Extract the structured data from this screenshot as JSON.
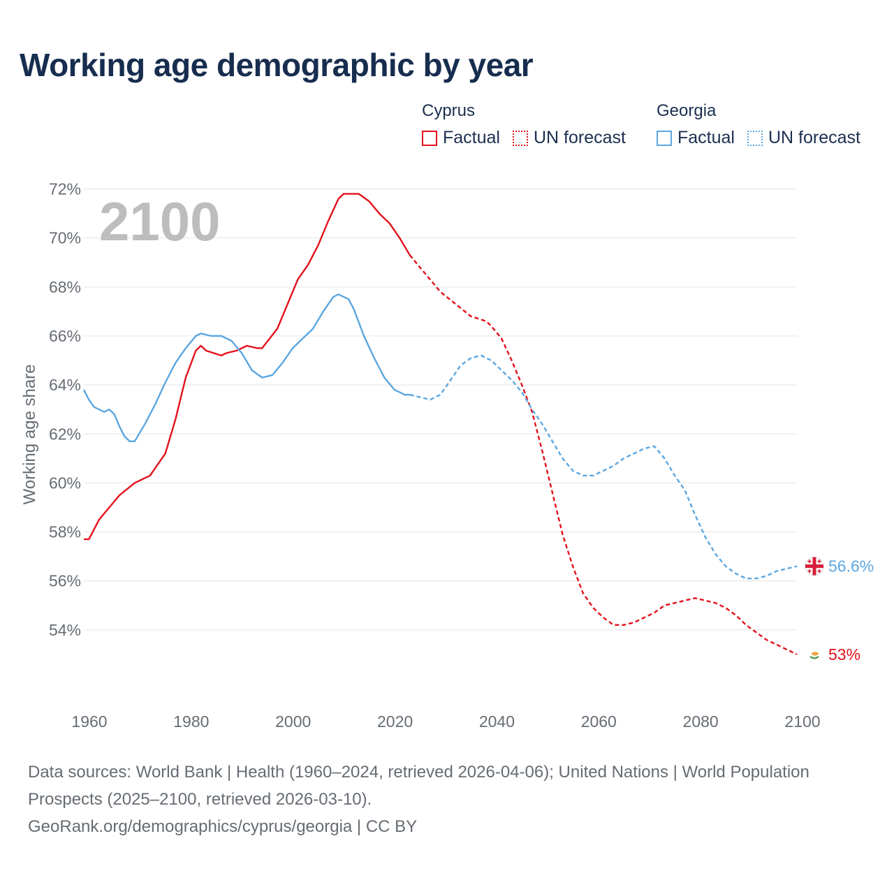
{
  "title": "Working age demographic by year",
  "legend": {
    "groups": [
      {
        "name": "Cyprus",
        "color": "#e3111b",
        "items": [
          "Factual",
          "UN forecast"
        ]
      },
      {
        "name": "Georgia",
        "color": "#5ba6e0",
        "items": [
          "Factual",
          "UN forecast"
        ]
      }
    ]
  },
  "footer": {
    "line1": "Data sources: World Bank | Health (1960–2024, retrieved 2026-04-06); United Nations | World Population Prospects (2025–2100, retrieved 2026-03-10).",
    "line2": "GeoRank.org/demographics/cyprus/georgia | CC BY"
  },
  "chart_data": {
    "type": "line",
    "title": "Working age demographic by year",
    "xlabel": "",
    "ylabel": "Working age share",
    "year_watermark": "2100",
    "xlim": [
      1960,
      2100
    ],
    "ylim": [
      52,
      72.5
    ],
    "x_ticks": [
      1960,
      1980,
      2000,
      2020,
      2040,
      2060,
      2080,
      2100
    ],
    "y_ticks": [
      54,
      56,
      58,
      60,
      62,
      64,
      66,
      68,
      70,
      72
    ],
    "y_tick_labels": [
      "54%",
      "56%",
      "58%",
      "60%",
      "62%",
      "64%",
      "66%",
      "68%",
      "70%",
      "72%"
    ],
    "grid": true,
    "factual_end_year": 2024,
    "series": [
      {
        "name": "Cyprus",
        "color": "#e3111b",
        "end_label": "53%",
        "flag_icon": "cyprus-flag-icon",
        "points": [
          [
            1960,
            57.7
          ],
          [
            1961,
            57.7
          ],
          [
            1962,
            58.1
          ],
          [
            1963,
            58.5
          ],
          [
            1965,
            59.0
          ],
          [
            1967,
            59.5
          ],
          [
            1970,
            60.0
          ],
          [
            1973,
            60.3
          ],
          [
            1976,
            61.2
          ],
          [
            1978,
            62.6
          ],
          [
            1980,
            64.3
          ],
          [
            1982,
            65.4
          ],
          [
            1983,
            65.6
          ],
          [
            1984,
            65.4
          ],
          [
            1987,
            65.2
          ],
          [
            1988,
            65.3
          ],
          [
            1990,
            65.4
          ],
          [
            1992,
            65.6
          ],
          [
            1994,
            65.5
          ],
          [
            1995,
            65.5
          ],
          [
            1998,
            66.3
          ],
          [
            2000,
            67.3
          ],
          [
            2002,
            68.3
          ],
          [
            2004,
            68.9
          ],
          [
            2006,
            69.7
          ],
          [
            2008,
            70.7
          ],
          [
            2010,
            71.6
          ],
          [
            2011,
            71.8
          ],
          [
            2014,
            71.8
          ],
          [
            2016,
            71.5
          ],
          [
            2018,
            71.0
          ],
          [
            2020,
            70.6
          ],
          [
            2022,
            70.0
          ],
          [
            2024,
            69.3
          ],
          [
            2026,
            68.8
          ],
          [
            2028,
            68.3
          ],
          [
            2030,
            67.8
          ],
          [
            2033,
            67.3
          ],
          [
            2036,
            66.8
          ],
          [
            2039,
            66.6
          ],
          [
            2040,
            66.4
          ],
          [
            2042,
            65.9
          ],
          [
            2044,
            65.0
          ],
          [
            2046,
            64.0
          ],
          [
            2048,
            62.9
          ],
          [
            2050,
            61.3
          ],
          [
            2052,
            59.6
          ],
          [
            2054,
            57.9
          ],
          [
            2056,
            56.6
          ],
          [
            2058,
            55.5
          ],
          [
            2060,
            54.9
          ],
          [
            2062,
            54.5
          ],
          [
            2064,
            54.2
          ],
          [
            2066,
            54.2
          ],
          [
            2068,
            54.3
          ],
          [
            2070,
            54.5
          ],
          [
            2072,
            54.7
          ],
          [
            2074,
            55.0
          ],
          [
            2076,
            55.1
          ],
          [
            2078,
            55.2
          ],
          [
            2080,
            55.3
          ],
          [
            2082,
            55.2
          ],
          [
            2084,
            55.1
          ],
          [
            2086,
            54.9
          ],
          [
            2088,
            54.6
          ],
          [
            2090,
            54.2
          ],
          [
            2092,
            53.9
          ],
          [
            2094,
            53.6
          ],
          [
            2096,
            53.4
          ],
          [
            2098,
            53.2
          ],
          [
            2100,
            53.0
          ]
        ]
      },
      {
        "name": "Georgia",
        "color": "#5ba6e0",
        "end_label": "56.6%",
        "flag_icon": "georgia-flag-icon",
        "points": [
          [
            1960,
            63.8
          ],
          [
            1961,
            63.4
          ],
          [
            1962,
            63.1
          ],
          [
            1964,
            62.9
          ],
          [
            1965,
            63.0
          ],
          [
            1966,
            62.8
          ],
          [
            1967,
            62.3
          ],
          [
            1968,
            61.9
          ],
          [
            1969,
            61.7
          ],
          [
            1970,
            61.7
          ],
          [
            1972,
            62.4
          ],
          [
            1974,
            63.2
          ],
          [
            1976,
            64.1
          ],
          [
            1978,
            64.9
          ],
          [
            1980,
            65.5
          ],
          [
            1982,
            66.0
          ],
          [
            1983,
            66.1
          ],
          [
            1985,
            66.0
          ],
          [
            1987,
            66.0
          ],
          [
            1989,
            65.8
          ],
          [
            1991,
            65.3
          ],
          [
            1993,
            64.6
          ],
          [
            1995,
            64.3
          ],
          [
            1997,
            64.4
          ],
          [
            1999,
            64.9
          ],
          [
            2001,
            65.5
          ],
          [
            2003,
            65.9
          ],
          [
            2005,
            66.3
          ],
          [
            2007,
            67.0
          ],
          [
            2009,
            67.6
          ],
          [
            2010,
            67.7
          ],
          [
            2012,
            67.5
          ],
          [
            2013,
            67.1
          ],
          [
            2015,
            66.0
          ],
          [
            2017,
            65.1
          ],
          [
            2019,
            64.3
          ],
          [
            2021,
            63.8
          ],
          [
            2023,
            63.6
          ],
          [
            2024,
            63.6
          ],
          [
            2026,
            63.5
          ],
          [
            2028,
            63.4
          ],
          [
            2030,
            63.6
          ],
          [
            2032,
            64.2
          ],
          [
            2034,
            64.8
          ],
          [
            2036,
            65.1
          ],
          [
            2038,
            65.2
          ],
          [
            2040,
            65.0
          ],
          [
            2042,
            64.6
          ],
          [
            2044,
            64.2
          ],
          [
            2046,
            63.7
          ],
          [
            2048,
            63.0
          ],
          [
            2050,
            62.4
          ],
          [
            2052,
            61.7
          ],
          [
            2054,
            61.0
          ],
          [
            2056,
            60.5
          ],
          [
            2058,
            60.3
          ],
          [
            2060,
            60.3
          ],
          [
            2062,
            60.5
          ],
          [
            2064,
            60.7
          ],
          [
            2066,
            61.0
          ],
          [
            2068,
            61.2
          ],
          [
            2070,
            61.4
          ],
          [
            2072,
            61.5
          ],
          [
            2074,
            61.0
          ],
          [
            2076,
            60.3
          ],
          [
            2078,
            59.7
          ],
          [
            2080,
            58.7
          ],
          [
            2082,
            57.8
          ],
          [
            2084,
            57.1
          ],
          [
            2086,
            56.6
          ],
          [
            2088,
            56.3
          ],
          [
            2090,
            56.1
          ],
          [
            2092,
            56.1
          ],
          [
            2094,
            56.2
          ],
          [
            2096,
            56.4
          ],
          [
            2098,
            56.5
          ],
          [
            2100,
            56.6
          ]
        ]
      }
    ]
  }
}
